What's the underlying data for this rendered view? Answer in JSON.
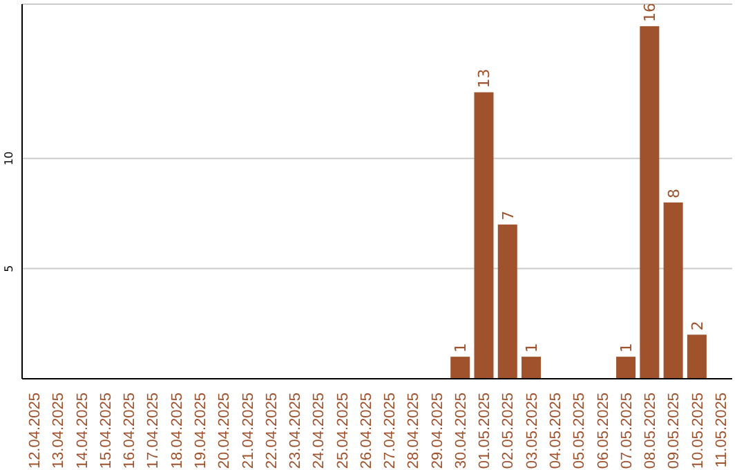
{
  "chart_data": {
    "type": "bar",
    "categories": [
      "12.04.2025",
      "13.04.2025",
      "14.04.2025",
      "15.04.2025",
      "16.04.2025",
      "17.04.2025",
      "18.04.2025",
      "19.04.2025",
      "20.04.2025",
      "21.04.2025",
      "22.04.2025",
      "23.04.2025",
      "24.04.2025",
      "25.04.2025",
      "26.04.2025",
      "27.04.2025",
      "28.04.2025",
      "29.04.2025",
      "30.04.2025",
      "01.05.2025",
      "02.05.2025",
      "03.05.2025",
      "04.05.2025",
      "05.05.2025",
      "06.05.2025",
      "07.05.2025",
      "08.05.2025",
      "09.05.2025",
      "10.05.2025",
      "11.05.2025"
    ],
    "values": [
      0,
      0,
      0,
      0,
      0,
      0,
      0,
      0,
      0,
      0,
      0,
      0,
      0,
      0,
      0,
      0,
      0,
      0,
      1,
      13,
      7,
      1,
      0,
      0,
      0,
      1,
      16,
      8,
      2,
      0
    ],
    "value_labels": [
      null,
      null,
      null,
      null,
      null,
      null,
      null,
      null,
      null,
      null,
      null,
      null,
      null,
      null,
      null,
      null,
      null,
      null,
      "1",
      "13",
      "7",
      "1",
      null,
      null,
      null,
      "1",
      "16",
      "8",
      "2",
      null
    ],
    "color": "#a0522d",
    "ylim": [
      0,
      17
    ],
    "yticks": [
      5,
      10
    ],
    "grid": "y"
  }
}
